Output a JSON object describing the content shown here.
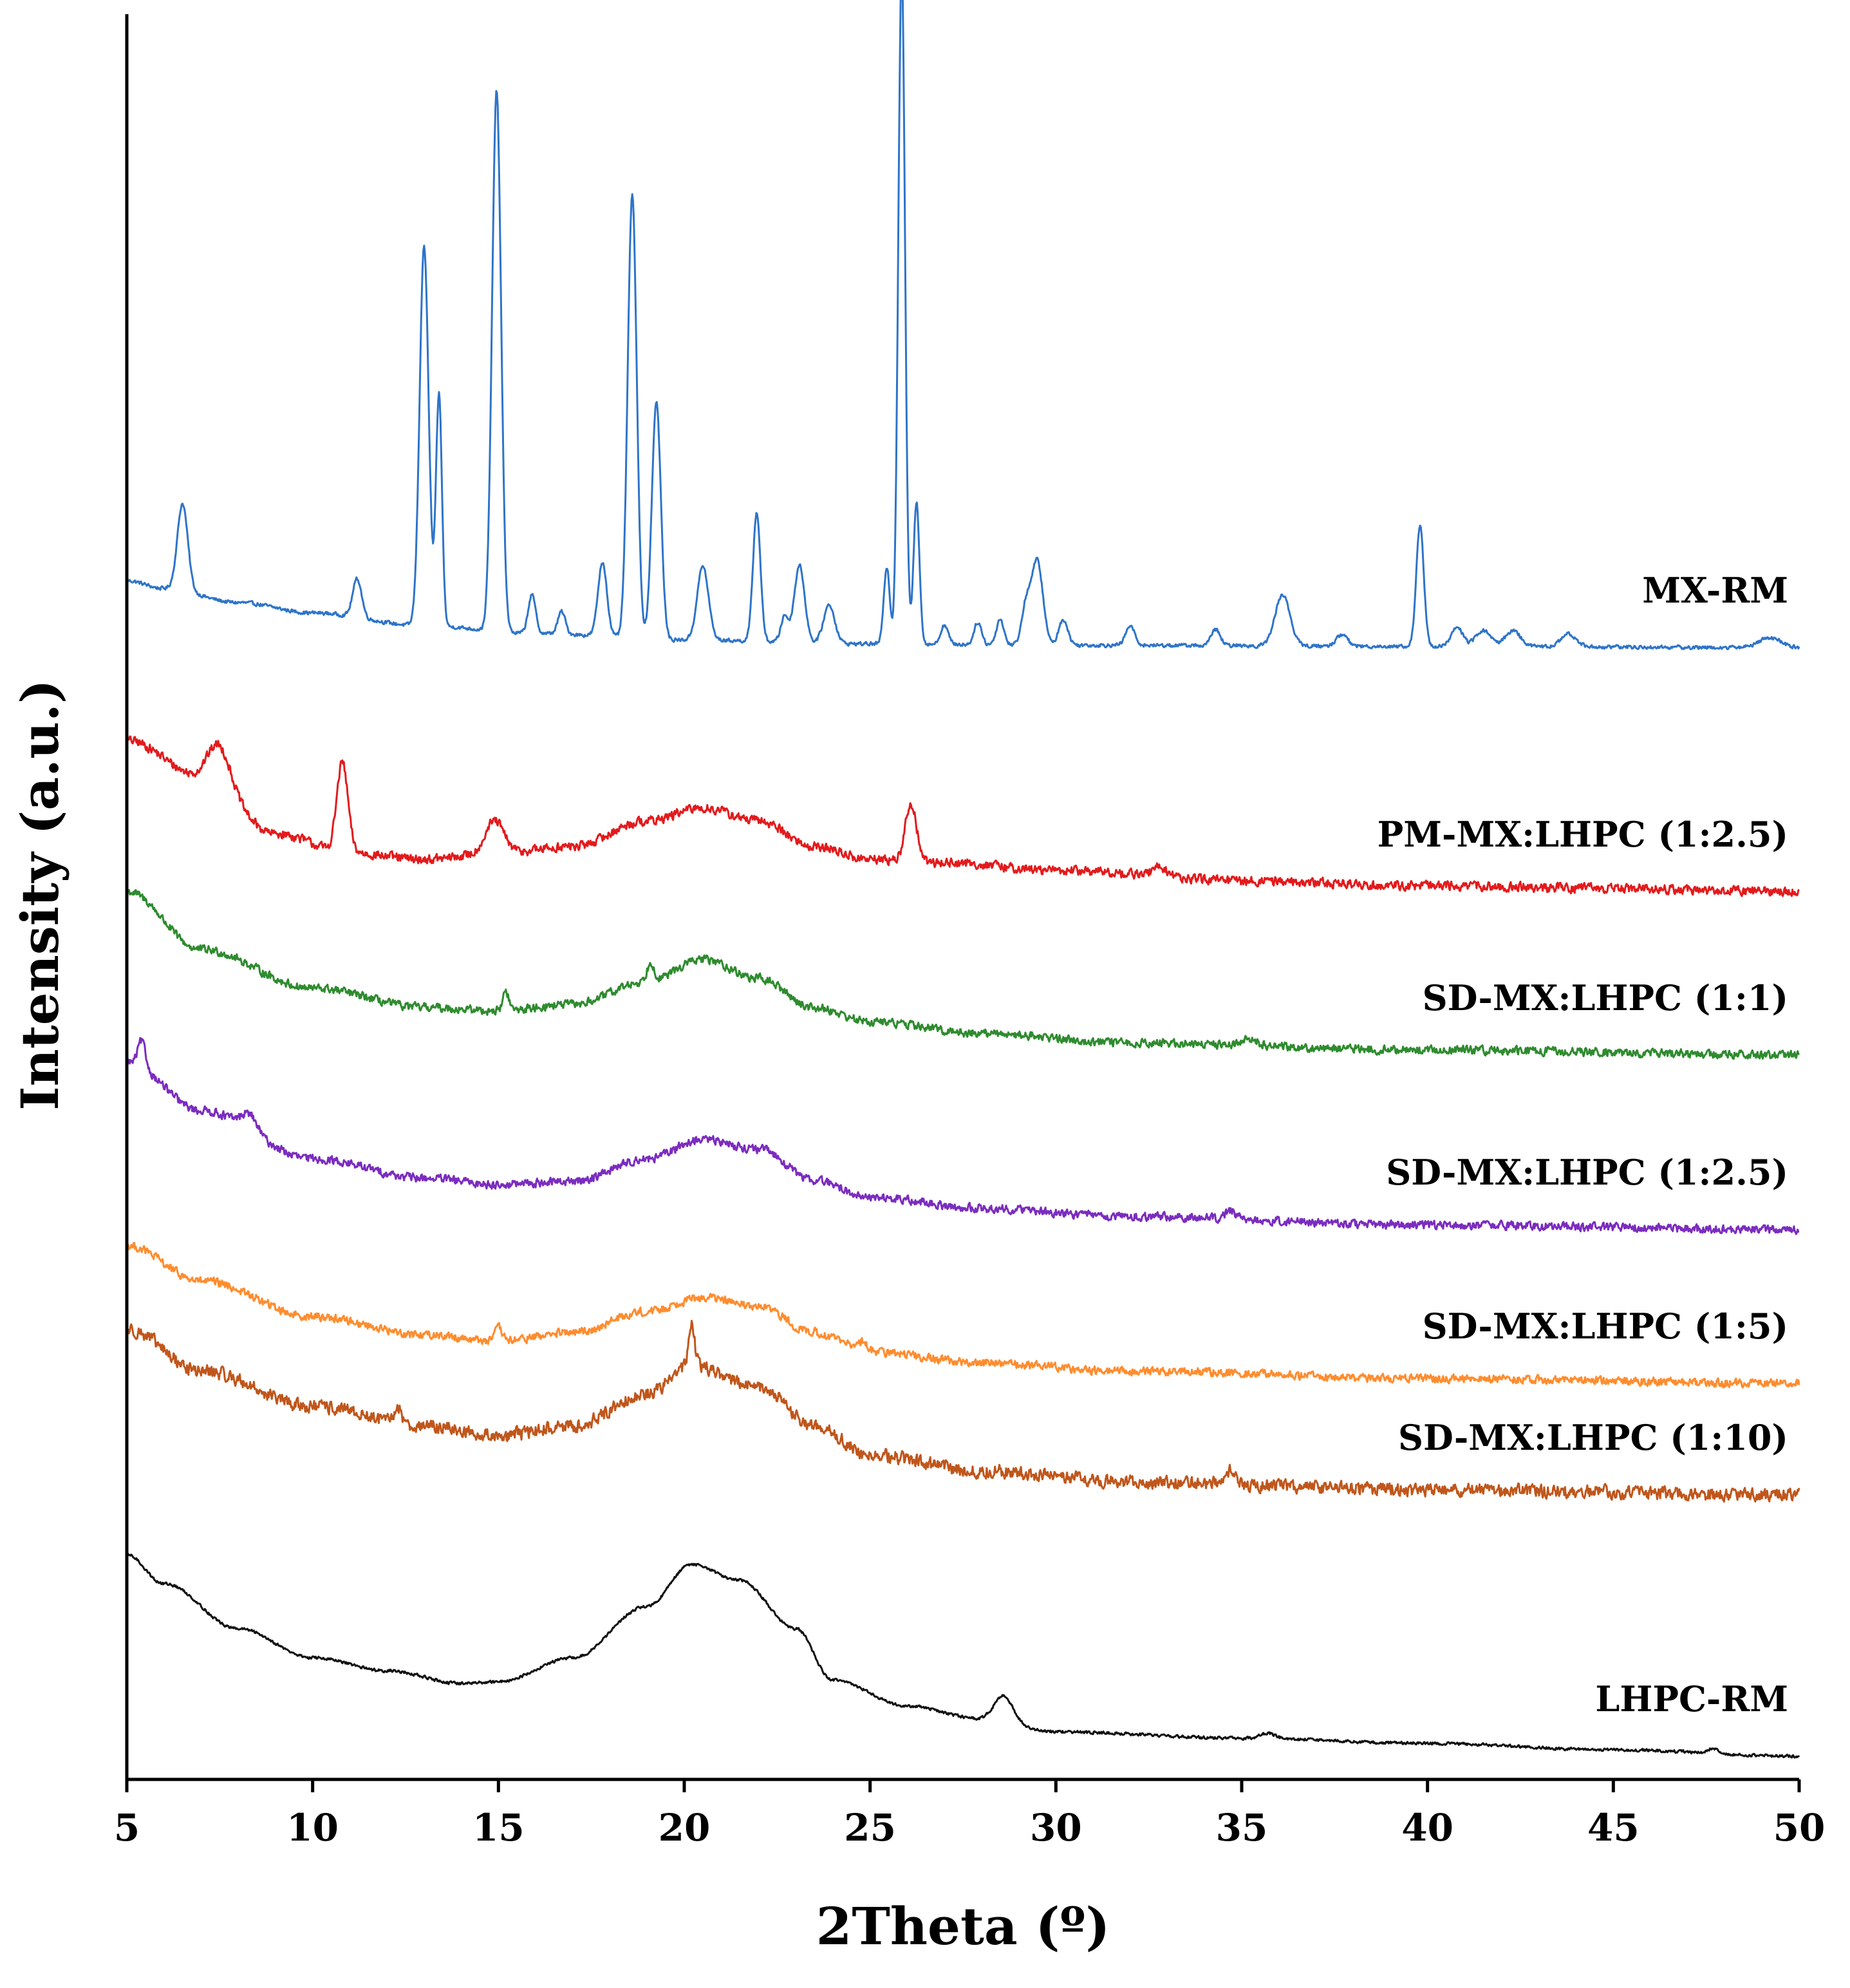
{
  "chart_data": {
    "type": "line",
    "title": "",
    "xlabel": "2Theta (º)",
    "ylabel": "Intensity (a.u.)",
    "xlim": [
      5,
      50
    ],
    "xticks": [
      5,
      10,
      15,
      20,
      25,
      30,
      35,
      40,
      45,
      50
    ],
    "xtick_labels": [
      "5",
      "10",
      "15",
      "20",
      "25",
      "30",
      "35",
      "40",
      "45",
      "50"
    ],
    "grid": false,
    "legend": "inline labels at right end of each trace",
    "series": [
      {
        "name": "MX-RM",
        "color": "#2e74c9",
        "offset": 1010,
        "noise": 4,
        "baseline": [
          [
            5,
            108
          ],
          [
            6,
            96
          ],
          [
            8,
            74
          ],
          [
            10,
            58
          ],
          [
            13,
            38
          ],
          [
            16,
            26
          ],
          [
            20,
            16
          ],
          [
            25,
            10
          ],
          [
            30,
            8
          ],
          [
            40,
            6
          ],
          [
            50,
            4
          ]
        ],
        "peaks": [
          [
            6.5,
            135,
            0.14
          ],
          [
            11.2,
            60,
            0.12
          ],
          [
            13.0,
            590,
            0.12
          ],
          [
            13.4,
            360,
            0.08
          ],
          [
            14.95,
            840,
            0.12
          ],
          [
            15.9,
            60,
            0.1
          ],
          [
            16.7,
            35,
            0.1
          ],
          [
            17.8,
            115,
            0.12
          ],
          [
            18.6,
            690,
            0.12
          ],
          [
            19.25,
            370,
            0.12
          ],
          [
            20.5,
            115,
            0.15
          ],
          [
            21.95,
            200,
            0.1
          ],
          [
            22.7,
            40,
            0.1
          ],
          [
            23.1,
            120,
            0.14
          ],
          [
            23.9,
            60,
            0.15
          ],
          [
            25.45,
            120,
            0.08
          ],
          [
            25.85,
            1050,
            0.09
          ],
          [
            26.25,
            220,
            0.08
          ],
          [
            27.0,
            30,
            0.1
          ],
          [
            27.9,
            35,
            0.1
          ],
          [
            28.5,
            40,
            0.1
          ],
          [
            29.2,
            60,
            0.12
          ],
          [
            29.5,
            130,
            0.15
          ],
          [
            30.2,
            40,
            0.12
          ],
          [
            32.0,
            30,
            0.12
          ],
          [
            34.3,
            25,
            0.12
          ],
          [
            36.1,
            80,
            0.2
          ],
          [
            37.7,
            18,
            0.15
          ],
          [
            39.8,
            190,
            0.1
          ],
          [
            40.8,
            30,
            0.15
          ],
          [
            41.5,
            25,
            0.2
          ],
          [
            42.3,
            25,
            0.2
          ],
          [
            43.8,
            20,
            0.2
          ],
          [
            49.2,
            15,
            0.3
          ]
        ]
      },
      {
        "name": "PM-MX:LHPC (1:2.5)",
        "color": "#e31a1c",
        "offset": 1390,
        "noise": 10,
        "baseline": [
          [
            5,
            240
          ],
          [
            7,
            185
          ],
          [
            9,
            95
          ],
          [
            11,
            65
          ],
          [
            13,
            55
          ],
          [
            15,
            65
          ],
          [
            17,
            75
          ],
          [
            19,
            115
          ],
          [
            20.5,
            135
          ],
          [
            22,
            115
          ],
          [
            23.5,
            75
          ],
          [
            25,
            55
          ],
          [
            27,
            50
          ],
          [
            30,
            38
          ],
          [
            35,
            22
          ],
          [
            40,
            14
          ],
          [
            45,
            10
          ],
          [
            50,
            5
          ]
        ],
        "peaks": [
          [
            7.5,
            60,
            0.3
          ],
          [
            10.8,
            140,
            0.15
          ],
          [
            14.9,
            50,
            0.25
          ],
          [
            26.1,
            90,
            0.15
          ],
          [
            32.8,
            15,
            0.2
          ]
        ]
      },
      {
        "name": "SD-MX:LHPC (1:1)",
        "color": "#2e8b2e",
        "offset": 1645,
        "noise": 9,
        "baseline": [
          [
            5,
            260
          ],
          [
            7,
            170
          ],
          [
            10,
            110
          ],
          [
            13,
            80
          ],
          [
            15,
            75
          ],
          [
            17,
            85
          ],
          [
            19,
            120
          ],
          [
            20.5,
            155
          ],
          [
            22,
            125
          ],
          [
            23.5,
            80
          ],
          [
            25,
            58
          ],
          [
            28,
            40
          ],
          [
            32,
            25
          ],
          [
            40,
            14
          ],
          [
            50,
            6
          ]
        ],
        "peaks": [
          [
            15.2,
            30,
            0.08
          ],
          [
            19.1,
            30,
            0.1
          ],
          [
            35.2,
            12,
            0.2
          ]
        ]
      },
      {
        "name": "SD-MX:LHPC (1:2.5)",
        "color": "#7b2cbf",
        "offset": 1915,
        "noise": 9,
        "baseline": [
          [
            5,
            265
          ],
          [
            7,
            190
          ],
          [
            10,
            115
          ],
          [
            13,
            85
          ],
          [
            15,
            75
          ],
          [
            17,
            80
          ],
          [
            19,
            115
          ],
          [
            20.5,
            145
          ],
          [
            22,
            130
          ],
          [
            23.5,
            82
          ],
          [
            25,
            55
          ],
          [
            28,
            38
          ],
          [
            32,
            25
          ],
          [
            40,
            12
          ],
          [
            50,
            5
          ]
        ],
        "peaks": [
          [
            5.4,
            40,
            0.1
          ],
          [
            8.3,
            25,
            0.2
          ],
          [
            34.7,
            12,
            0.15
          ]
        ]
      },
      {
        "name": "SD-MX:LHPC (1:5)",
        "color": "#ff8c2e",
        "offset": 2155,
        "noise": 9,
        "baseline": [
          [
            5,
            220
          ],
          [
            7,
            165
          ],
          [
            10,
            110
          ],
          [
            13,
            82
          ],
          [
            15,
            72
          ],
          [
            17,
            85
          ],
          [
            19,
            118
          ],
          [
            20.5,
            140
          ],
          [
            22,
            125
          ],
          [
            23.5,
            85
          ],
          [
            25,
            55
          ],
          [
            28,
            38
          ],
          [
            32,
            25
          ],
          [
            40,
            14
          ],
          [
            50,
            6
          ]
        ],
        "peaks": [
          [
            15.0,
            20,
            0.1
          ],
          [
            24.8,
            15,
            0.15
          ]
        ]
      },
      {
        "name": "SD-MX:LHPC (1:10)",
        "color": "#c0561b",
        "offset": 2330,
        "noise": 14,
        "baseline": [
          [
            5,
            265
          ],
          [
            7,
            200
          ],
          [
            10,
            145
          ],
          [
            13,
            115
          ],
          [
            15,
            100
          ],
          [
            17,
            115
          ],
          [
            19,
            165
          ],
          [
            20.2,
            210
          ],
          [
            22,
            175
          ],
          [
            23.5,
            115
          ],
          [
            25,
            70
          ],
          [
            28,
            45
          ],
          [
            32,
            28
          ],
          [
            40,
            16
          ],
          [
            50,
            8
          ]
        ],
        "peaks": [
          [
            20.2,
            60,
            0.08
          ],
          [
            34.7,
            20,
            0.15
          ],
          [
            12.3,
            25,
            0.1
          ]
        ]
      },
      {
        "name": "LHPC-RM",
        "color": "#111111",
        "offset": 2730,
        "noise": 3,
        "baseline": [
          [
            5,
            315
          ],
          [
            6,
            270
          ],
          [
            8,
            200
          ],
          [
            10,
            155
          ],
          [
            12,
            135
          ],
          [
            14,
            115
          ],
          [
            15,
            118
          ],
          [
            17,
            155
          ],
          [
            19,
            235
          ],
          [
            20.2,
            300
          ],
          [
            21.5,
            275
          ],
          [
            23,
            200
          ],
          [
            24,
            120
          ],
          [
            26,
            80
          ],
          [
            28,
            60
          ],
          [
            30,
            40
          ],
          [
            35,
            30
          ],
          [
            40,
            22
          ],
          [
            45,
            12
          ],
          [
            50,
            2
          ]
        ],
        "peaks": [
          [
            28.6,
            40,
            0.25
          ],
          [
            35.7,
            8,
            0.2
          ],
          [
            47.7,
            8,
            0.15
          ]
        ]
      }
    ]
  }
}
